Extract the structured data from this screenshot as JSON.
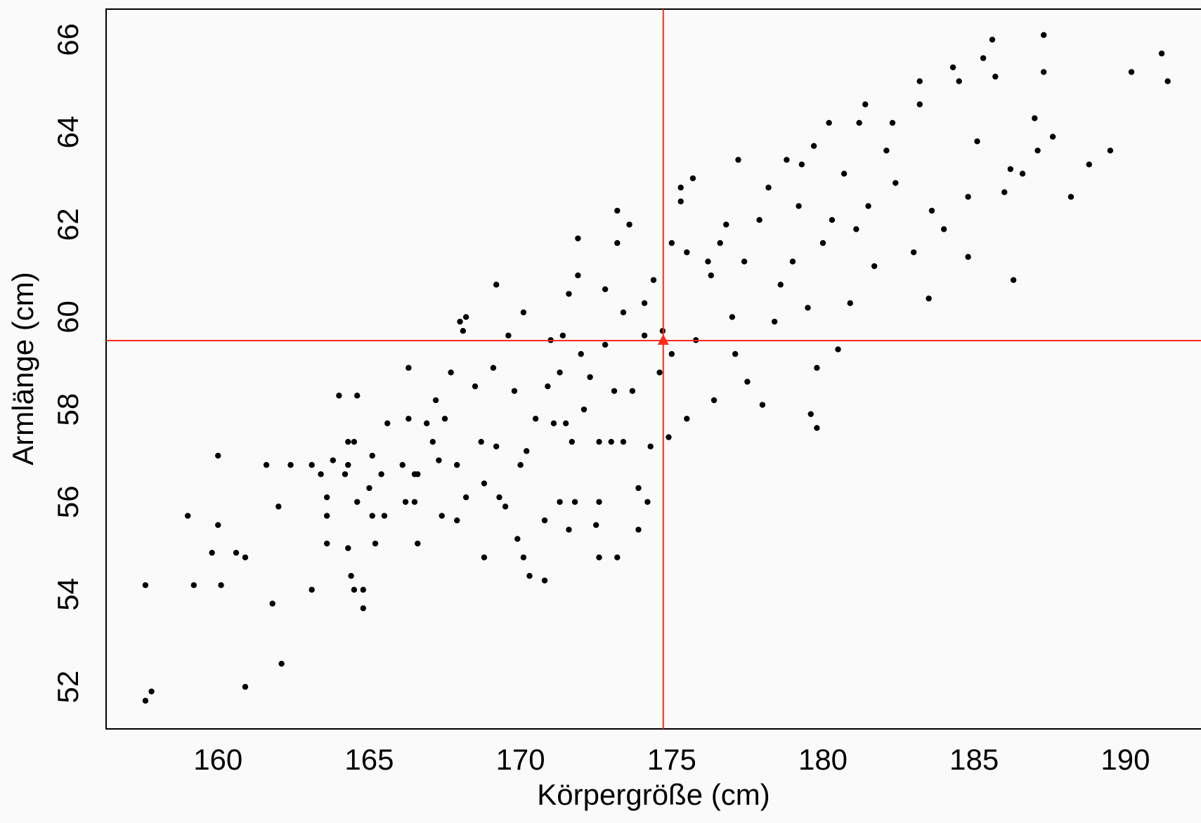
{
  "chart_data": {
    "type": "scatter",
    "x_label": "Körpergröße (cm)",
    "y_label": "Armlänge (cm)",
    "label_color": "#1a3cff",
    "xlim": [
      156.3,
      192.5
    ],
    "ylim": [
      51.09,
      66.66
    ],
    "xticks": [
      160,
      165,
      170,
      175,
      180,
      185,
      190
    ],
    "yticks": [
      52,
      54,
      56,
      58,
      60,
      62,
      64,
      66
    ],
    "color": "#000000",
    "mean": {
      "x": 174.72,
      "y": 59.49,
      "color": "#ff2a1a"
    },
    "x": [
      157.6,
      157.6,
      157.8,
      159,
      159.2,
      159.8,
      160,
      160,
      160.1,
      160.6,
      160.9,
      160.9,
      161.6,
      161.8,
      162,
      162.1,
      162.4,
      163.1,
      163.1,
      163.4,
      163.6,
      163.6,
      163.6,
      163.8,
      164,
      164.2,
      164.3,
      164.3,
      164.3,
      164.4,
      164.5,
      164.5,
      164.6,
      164.6,
      164.8,
      164.8,
      165,
      165.1,
      165.1,
      165.2,
      165.4,
      165.5,
      165.6,
      166.1,
      166.2,
      166.3,
      166.3,
      166.5,
      166.5,
      166.6,
      166.6,
      166.9,
      167.1,
      167.2,
      167.3,
      167.4,
      167.5,
      167.7,
      167.9,
      167.9,
      168,
      168.1,
      168.2,
      168.2,
      168.5,
      168.7,
      168.8,
      168.8,
      169.1,
      169.2,
      169.2,
      169.3,
      169.5,
      169.6,
      169.8,
      169.9,
      170,
      170.1,
      170.1,
      170.2,
      170.3,
      170.5,
      170.8,
      170.8,
      170.9,
      171,
      171.1,
      171.3,
      171.3,
      171.4,
      171.5,
      171.6,
      171.6,
      171.7,
      171.8,
      171.9,
      171.9,
      172,
      172.1,
      172.3,
      172.5,
      172.6,
      172.6,
      172.6,
      172.8,
      172.8,
      173,
      173.1,
      173.2,
      173.2,
      173.2,
      173.4,
      173.4,
      173.6,
      173.7,
      173.9,
      173.9,
      174.1,
      174.1,
      174.2,
      174.3,
      174.4,
      174.6,
      174.7,
      174.9,
      175,
      175,
      175.3,
      175.3,
      175.5,
      175.5,
      175.7,
      175.8,
      176.2,
      176.3,
      176.4,
      176.6,
      176.8,
      177,
      177.1,
      177.2,
      177.4,
      177.5,
      177.9,
      178,
      178.2,
      178.4,
      178.6,
      178.8,
      179,
      179.2,
      179.3,
      179.5,
      179.6,
      179.7,
      179.8,
      179.8,
      180,
      180.2,
      180.3,
      180.5,
      180.7,
      180.9,
      181.1,
      181.2,
      181.4,
      181.5,
      181.7,
      182.1,
      182.3,
      182.4,
      183,
      183.2,
      183.2,
      183.5,
      183.6,
      184,
      184.3,
      184.5,
      184.8,
      184.8,
      185.1,
      185.3,
      185.6,
      185.7,
      186,
      186.2,
      186.3,
      186.6,
      187,
      187.1,
      187.3,
      187.3,
      187.6,
      188.2,
      188.8,
      189.5,
      190.2,
      191.2,
      191.4
    ],
    "values": [
      54.2,
      51.7,
      51.9,
      55.7,
      54.2,
      54.9,
      55.5,
      57,
      54.2,
      54.9,
      54.8,
      52,
      56.8,
      53.8,
      55.9,
      52.5,
      56.8,
      54.1,
      56.8,
      56.6,
      56.1,
      55.7,
      55.1,
      56.9,
      58.3,
      56.6,
      57.3,
      56.8,
      55,
      54.4,
      57.3,
      54.1,
      56,
      58.3,
      53.7,
      54.1,
      56.3,
      55.7,
      57,
      55.1,
      56.6,
      55.7,
      57.7,
      56.8,
      56,
      58.9,
      57.8,
      56.6,
      56,
      56.6,
      55.1,
      57.7,
      57.3,
      58.2,
      56.9,
      55.7,
      57.8,
      58.8,
      56.8,
      55.6,
      59.9,
      59.7,
      60,
      56.1,
      58.5,
      57.3,
      54.8,
      56.4,
      58.9,
      57.2,
      60.7,
      56.1,
      55.9,
      59.6,
      58.4,
      55.2,
      56.8,
      54.8,
      60.1,
      57.1,
      54.4,
      57.8,
      54.3,
      55.6,
      58.5,
      59.5,
      57.7,
      56,
      58.8,
      59.6,
      57.7,
      55.4,
      60.5,
      57.3,
      56,
      61.7,
      60.9,
      59.2,
      58,
      58.7,
      55.5,
      54.8,
      56,
      57.3,
      59.4,
      60.6,
      57.3,
      58.4,
      62.3,
      61.6,
      54.8,
      57.3,
      60.1,
      62,
      58.4,
      56.3,
      55.4,
      59.6,
      60.3,
      56,
      57.2,
      60.8,
      58.8,
      59.7,
      57.4,
      61.6,
      59.2,
      62.8,
      62.5,
      61.4,
      57.8,
      63,
      59.5,
      61.2,
      60.9,
      58.2,
      61.6,
      62,
      60,
      59.2,
      63.4,
      61.2,
      58.6,
      62.1,
      58.1,
      62.8,
      59.9,
      60.7,
      63.4,
      61.2,
      62.4,
      63.3,
      60.2,
      57.9,
      63.7,
      57.6,
      58.9,
      61.6,
      64.2,
      62.1,
      59.3,
      63.1,
      60.3,
      61.9,
      64.2,
      64.6,
      62.4,
      61.1,
      63.6,
      64.2,
      62.9,
      61.4,
      65.1,
      64.6,
      60.4,
      62.3,
      61.9,
      65.4,
      65.1,
      62.6,
      61.3,
      63.8,
      65.6,
      66,
      65.2,
      62.7,
      63.2,
      60.8,
      63.1,
      64.3,
      63.6,
      66.1,
      65.3,
      63.9,
      62.6,
      63.3,
      63.6,
      65.3,
      65.7,
      65.1
    ]
  }
}
